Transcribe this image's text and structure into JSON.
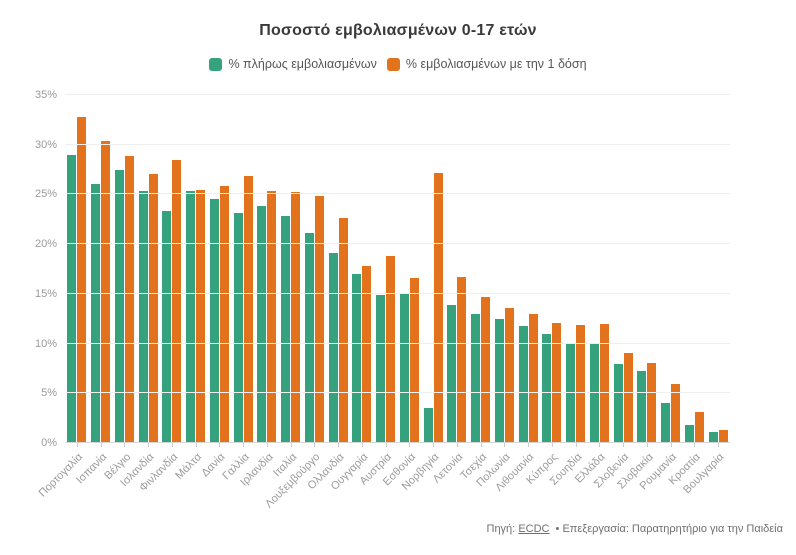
{
  "title": "Ποσοστό εμβολιασμένων 0-17 ετών",
  "legend": [
    {
      "label": "% πλήρως εμβολιασμένων",
      "color": "#35a27d"
    },
    {
      "label": "% εμβολιασμένων με την 1 δόση",
      "color": "#e2731c"
    }
  ],
  "footer": {
    "source_prefix": "Πηγή:",
    "source_link": "ECDC",
    "rest": "• Επεξεργασία: Παρατηρητήριο για την Παιδεία"
  },
  "chart_data": {
    "type": "bar",
    "title": "Ποσοστό εμβολιασμένων 0-17 ετών",
    "xlabel": "",
    "ylabel": "",
    "ylim": [
      0,
      35
    ],
    "grid": true,
    "legend_position": "top",
    "y_axis": {
      "unit": "%",
      "ticks": [
        "0%",
        "5%",
        "10%",
        "15%",
        "20%",
        "25%",
        "30%",
        "35%"
      ],
      "tick_values": [
        0,
        5,
        10,
        15,
        20,
        25,
        30,
        35
      ]
    },
    "categories": [
      "Πορτογαλία",
      "Ισπανία",
      "Βέλγιο",
      "Ισλανδία",
      "Φινλανδία",
      "Μάλτα",
      "Δανία",
      "Γαλλία",
      "Ιρλανδία",
      "Ιταλία",
      "Λουξεμβούργο",
      "Ολλανδία",
      "Ουγγαρία",
      "Αυστρία",
      "Εσθονία",
      "Νορβηγία",
      "Λετονία",
      "Τσεχία",
      "Πολωνία",
      "Λιθουανία",
      "Κύπρος",
      "Σουηδία",
      "Ελλάδα",
      "Σλοβενία",
      "Σλοβακία",
      "Ρουμανία",
      "Κροατία",
      "Βουλγαρία"
    ],
    "series": [
      {
        "name": "% πλήρως εμβολιασμένων",
        "color": "#35a27d",
        "values": [
          29.0,
          26.1,
          27.5,
          25.3,
          23.3,
          25.3,
          24.5,
          23.1,
          23.8,
          22.8,
          21.1,
          19.1,
          17.0,
          14.9,
          15.1,
          3.5,
          13.9,
          13.0,
          12.5,
          11.8,
          11.0,
          10.1,
          10.1,
          7.9,
          7.2,
          4.0,
          1.8,
          1.1
        ]
      },
      {
        "name": "% εμβολιασμένων με την 1 δόση",
        "color": "#e2731c",
        "values": [
          32.8,
          30.4,
          28.9,
          27.1,
          28.5,
          25.4,
          25.8,
          26.9,
          25.3,
          25.2,
          24.8,
          22.6,
          17.8,
          18.8,
          16.6,
          27.2,
          16.7,
          14.7,
          13.6,
          13.0,
          12.1,
          11.9,
          12.0,
          9.1,
          8.0,
          5.9,
          3.1,
          1.3
        ]
      }
    ]
  }
}
